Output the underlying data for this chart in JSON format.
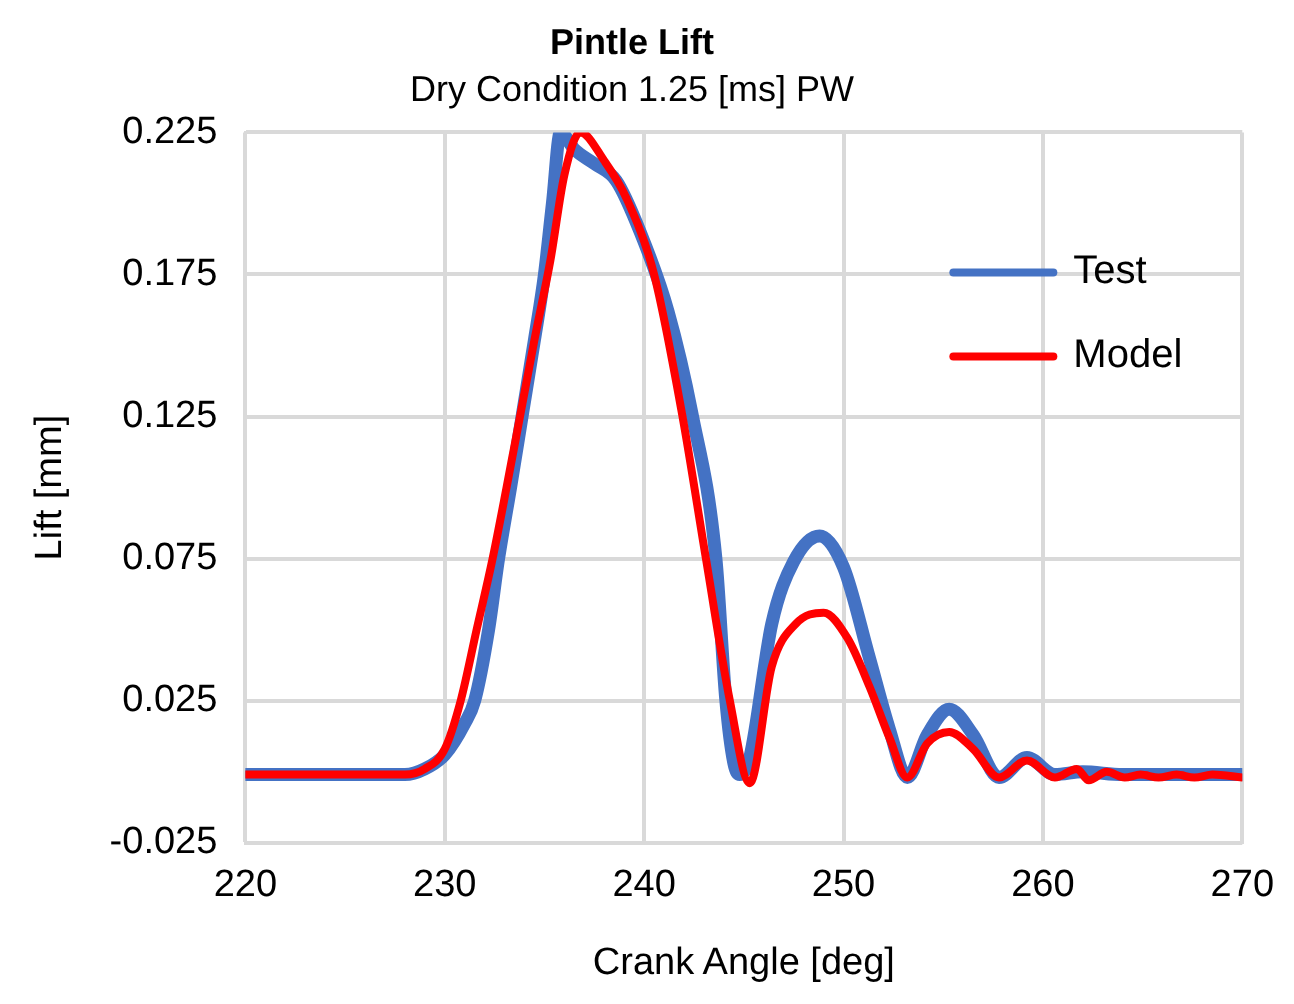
{
  "chart_data": {
    "type": "line",
    "title": "Pintle Lift",
    "subtitle": "Dry Condition 1.25 [ms] PW",
    "xlabel": "Crank Angle [deg]",
    "ylabel": "Lift [mm]",
    "xlim": [
      220,
      270
    ],
    "xticks": [
      220,
      230,
      240,
      250,
      260,
      270
    ],
    "ylim": [
      -0.025,
      0.225
    ],
    "yticks": [
      -0.025,
      0.025,
      0.075,
      0.125,
      0.175,
      0.225
    ],
    "grid": true,
    "legend": "top right",
    "marker": "none",
    "line_style": "solid",
    "series": [
      {
        "name": "Test",
        "color": "#4472c4",
        "x": [
          220,
          228,
          229,
          230,
          231,
          231.5,
          232.2,
          232.7,
          233.3,
          233.9,
          234.5,
          235,
          235.4,
          235.8,
          236.5,
          237.5,
          238.6,
          239.8,
          241.2,
          242.4,
          243.6,
          244.1,
          244.5,
          244.8,
          245.3,
          246.4,
          247.5,
          248.8,
          250,
          251.3,
          252.3,
          253.2,
          254.2,
          255.3,
          256.5,
          257.8,
          259.2,
          260.6,
          262,
          264,
          266,
          270
        ],
        "values": [
          -0.001,
          -0.001,
          0.001,
          0.006,
          0.017,
          0.025,
          0.05,
          0.075,
          0.1,
          0.126,
          0.152,
          0.175,
          0.2,
          0.225,
          0.219,
          0.214,
          0.208,
          0.19,
          0.162,
          0.126,
          0.075,
          0.025,
          0.003,
          -0.001,
          0.005,
          0.052,
          0.074,
          0.083,
          0.072,
          0.04,
          0.015,
          -0.002,
          0.013,
          0.022,
          0.013,
          -0.002,
          0.005,
          -0.001,
          0,
          -0.001,
          -0.001,
          -0.001
        ]
      },
      {
        "name": "Model",
        "color": "#ff0000",
        "x": [
          220,
          228,
          229,
          230,
          230.8,
          231.6,
          232.4,
          233.1,
          233.8,
          234.5,
          235.3,
          236,
          236.8,
          238,
          239.1,
          240.5,
          241.9,
          243.1,
          244.3,
          245.3,
          246.4,
          247.6,
          249,
          250.2,
          251.3,
          252.3,
          253.2,
          254.2,
          255.3,
          256.5,
          257.8,
          259.2,
          260.6,
          261.7,
          262.3,
          263.2,
          264.1,
          264.9,
          265.8,
          266.7,
          267.6,
          268.5,
          270
        ],
        "values": [
          -0.001,
          -0.001,
          0.001,
          0.008,
          0.025,
          0.05,
          0.075,
          0.1,
          0.126,
          0.152,
          0.18,
          0.21,
          0.225,
          0.215,
          0.202,
          0.175,
          0.126,
          0.075,
          0.025,
          -0.004,
          0.037,
          0.052,
          0.056,
          0.047,
          0.03,
          0.012,
          -0.002,
          0.01,
          0.014,
          0.008,
          -0.002,
          0.004,
          -0.002,
          0.001,
          -0.003,
          0,
          -0.002,
          -0.001,
          -0.002,
          -0.001,
          -0.002,
          -0.001,
          -0.002
        ]
      }
    ]
  }
}
